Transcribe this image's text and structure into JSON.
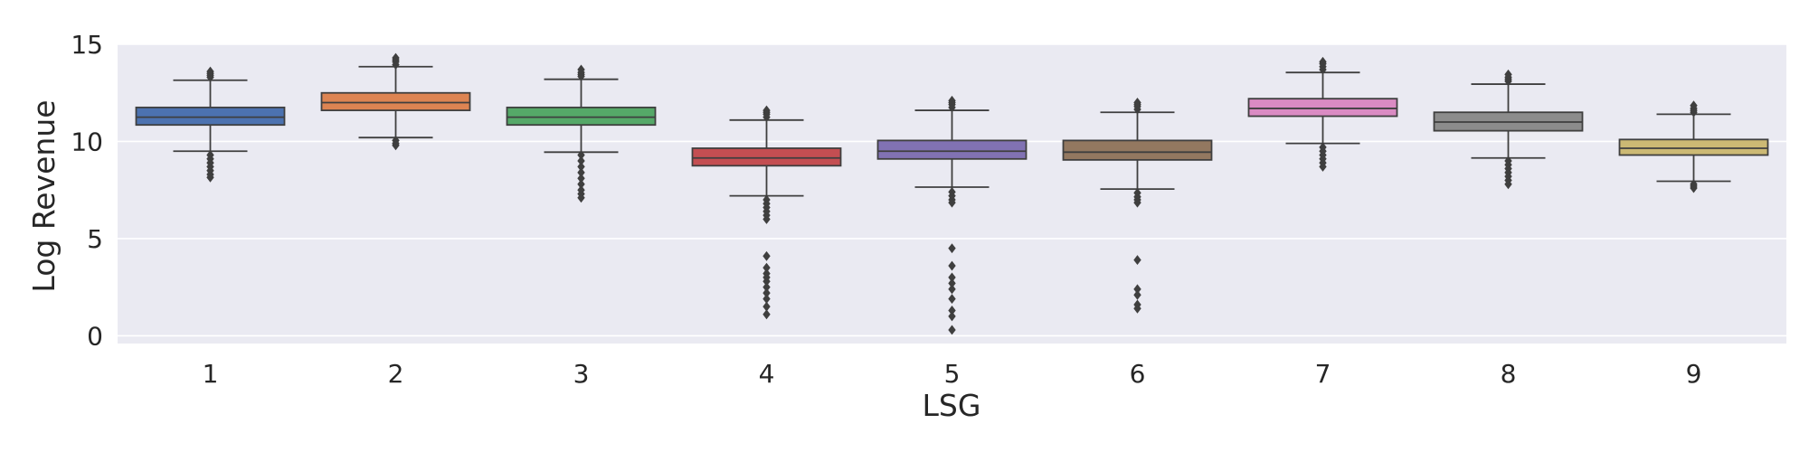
{
  "chart_data": {
    "type": "box",
    "xlabel": "LSG",
    "ylabel": "Log Revenue",
    "ylim": [
      -0.4,
      15
    ],
    "yticks": [
      0,
      5,
      10,
      15
    ],
    "grid": true,
    "background": "#eaeaf2",
    "categories": [
      "1",
      "2",
      "3",
      "4",
      "5",
      "6",
      "7",
      "8",
      "9"
    ],
    "boxes": [
      {
        "category": "1",
        "color": "#4c72b0",
        "whisker_low": 9.5,
        "q1": 10.85,
        "median": 11.25,
        "q3": 11.75,
        "whisker_high": 13.15,
        "outliers": [
          13.3,
          13.4,
          13.5,
          13.6,
          9.3,
          9.1,
          8.9,
          8.7,
          8.5,
          8.3,
          8.15
        ]
      },
      {
        "category": "2",
        "color": "#dd8452",
        "whisker_low": 10.2,
        "q1": 11.6,
        "median": 12.0,
        "q3": 12.5,
        "whisker_high": 13.85,
        "outliers": [
          13.95,
          14.1,
          14.2,
          14.3,
          10.05,
          9.9,
          9.8
        ]
      },
      {
        "category": "3",
        "color": "#55a868",
        "whisker_low": 9.45,
        "q1": 10.85,
        "median": 11.25,
        "q3": 11.75,
        "whisker_high": 13.2,
        "outliers": [
          13.35,
          13.45,
          13.55,
          13.7,
          9.3,
          9.0,
          8.7,
          8.4,
          8.1,
          7.8,
          7.5,
          7.3,
          7.1
        ]
      },
      {
        "category": "4",
        "color": "#c44e52",
        "whisker_low": 7.2,
        "q1": 8.75,
        "median": 9.15,
        "q3": 9.65,
        "whisker_high": 11.1,
        "outliers": [
          11.25,
          11.4,
          11.5,
          11.6,
          7.0,
          6.8,
          6.6,
          6.4,
          6.2,
          6.0,
          4.1,
          3.5,
          3.2,
          3.0,
          2.8,
          2.5,
          2.2,
          1.9,
          1.5,
          1.1
        ]
      },
      {
        "category": "5",
        "color": "#8172b3",
        "whisker_low": 7.65,
        "q1": 9.1,
        "median": 9.5,
        "q3": 10.05,
        "whisker_high": 11.6,
        "outliers": [
          11.75,
          11.9,
          12.0,
          12.1,
          7.4,
          7.2,
          7.0,
          6.85,
          4.5,
          3.6,
          3.0,
          2.7,
          2.4,
          1.9,
          1.3,
          1.0,
          0.3
        ]
      },
      {
        "category": "6",
        "color": "#937860",
        "whisker_low": 7.55,
        "q1": 9.05,
        "median": 9.45,
        "q3": 10.05,
        "whisker_high": 11.5,
        "outliers": [
          11.65,
          11.8,
          11.9,
          12.0,
          7.35,
          7.15,
          7.0,
          6.85,
          3.9,
          2.4,
          2.1,
          1.6,
          1.4
        ]
      },
      {
        "category": "7",
        "color": "#da8bc3",
        "whisker_low": 9.9,
        "q1": 11.3,
        "median": 11.7,
        "q3": 12.2,
        "whisker_high": 13.55,
        "outliers": [
          13.7,
          13.85,
          14.0,
          14.1,
          9.7,
          9.5,
          9.3,
          9.1,
          8.9,
          8.7
        ]
      },
      {
        "category": "8",
        "color": "#8c8c8c",
        "whisker_low": 9.15,
        "q1": 10.55,
        "median": 11.0,
        "q3": 11.5,
        "whisker_high": 12.95,
        "outliers": [
          13.1,
          13.2,
          13.3,
          13.45,
          9.0,
          8.8,
          8.6,
          8.4,
          8.2,
          8.0,
          7.8
        ]
      },
      {
        "category": "9",
        "color": "#ccb974",
        "whisker_low": 7.95,
        "q1": 9.3,
        "median": 9.65,
        "q3": 10.1,
        "whisker_high": 11.4,
        "outliers": [
          11.5,
          11.6,
          11.7,
          11.85,
          7.8,
          7.7,
          7.6
        ]
      }
    ]
  }
}
